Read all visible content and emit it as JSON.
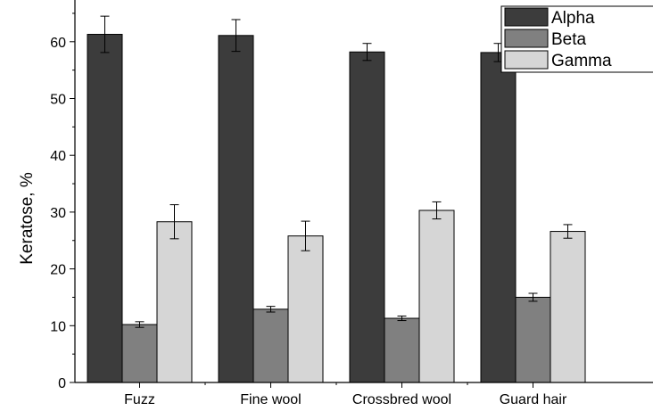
{
  "chart_data": {
    "type": "bar",
    "title": "",
    "xlabel": "",
    "ylabel": "Keratose, %",
    "ylim": [
      0,
      65
    ],
    "yticks": [
      0,
      10,
      20,
      30,
      40,
      50,
      60
    ],
    "categories": [
      "Fuzz",
      "Fine wool",
      "Crossbred wool",
      "Guard hair"
    ],
    "series": [
      {
        "name": "Alpha",
        "color": "#3c3c3c",
        "values": [
          61.3,
          61.1,
          58.2,
          58.1
        ],
        "errors": [
          3.2,
          2.8,
          1.5,
          1.6
        ]
      },
      {
        "name": "Beta",
        "color": "#808080",
        "values": [
          10.2,
          12.9,
          11.3,
          15.0
        ],
        "errors": [
          0.5,
          0.5,
          0.4,
          0.7
        ]
      },
      {
        "name": "Gamma",
        "color": "#d6d6d6",
        "values": [
          28.3,
          25.8,
          30.3,
          26.6
        ],
        "errors": [
          3.0,
          2.6,
          1.5,
          1.2
        ]
      }
    ],
    "legend": {
      "position": "top-right",
      "entries": [
        "Alpha",
        "Beta",
        "Gamma"
      ]
    },
    "grid": false
  }
}
